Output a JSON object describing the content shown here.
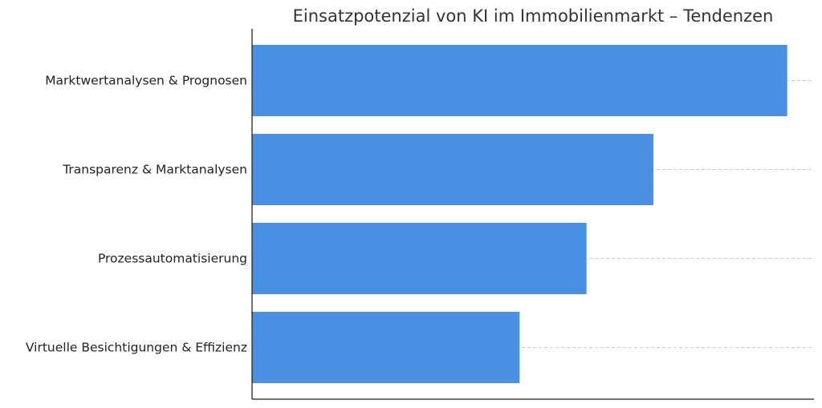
{
  "chart_data": {
    "type": "bar",
    "orientation": "horizontal",
    "title": "Einsatzpotenzial von KI im Immobilienmarkt – Tendenzen",
    "xlabel": "",
    "ylabel": "",
    "categories": [
      "Marktwertanalysen & Prognosen",
      "Transparenz & Marktanalysen",
      "Prozessautomatisierung",
      "Virtuelle Besichtigungen & Effizienz"
    ],
    "values": [
      4.0,
      3.0,
      2.5,
      2.0
    ],
    "xlim": [
      0,
      4.2
    ],
    "grid": "horizontal-dashed",
    "x_ticks_visible": false,
    "legend": "none",
    "bar_color": "#4a90e2"
  }
}
